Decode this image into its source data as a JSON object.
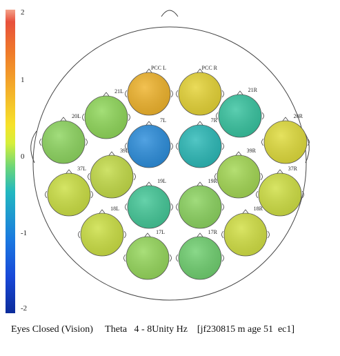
{
  "scale": {
    "ticks": [
      "2",
      "1",
      "0",
      "-1",
      "-2"
    ],
    "colors": [
      "#f4a28a",
      "#e8503c",
      "#ef7a2a",
      "#f3a52a",
      "#f6e22a",
      "#d6ef3a",
      "#6ad57a",
      "#22b8c0",
      "#1a78e0",
      "#1848d8",
      "#0c2c9a"
    ]
  },
  "sites": [
    {
      "label": "PCC L",
      "value": 1.3,
      "color": "#f0b42c"
    },
    {
      "label": "PCC R",
      "value": 0.9,
      "color": "#e6d436"
    },
    {
      "label": "21L",
      "value": 0.2,
      "color": "#90d85a"
    },
    {
      "label": "21R",
      "value": -0.5,
      "color": "#38c4a0"
    },
    {
      "label": "20L",
      "value": 0.1,
      "color": "#8ed660"
    },
    {
      "label": "20R",
      "value": 0.7,
      "color": "#e0dc3c"
    },
    {
      "label": "7L",
      "value": -1.0,
      "color": "#2c8edc"
    },
    {
      "label": "7R",
      "value": -0.6,
      "color": "#2cbab8"
    },
    {
      "label": "39L",
      "value": 0.5,
      "color": "#c4dc48"
    },
    {
      "label": "39R",
      "value": 0.3,
      "color": "#a4d854"
    },
    {
      "label": "37L",
      "value": 0.6,
      "color": "#cce044"
    },
    {
      "label": "37R",
      "value": 0.6,
      "color": "#d0e044"
    },
    {
      "label": "19L",
      "value": -0.3,
      "color": "#44c898"
    },
    {
      "label": "19R",
      "value": 0.2,
      "color": "#8cd460"
    },
    {
      "label": "18L",
      "value": 0.6,
      "color": "#cce044"
    },
    {
      "label": "18R",
      "value": 0.6,
      "color": "#d2e044"
    },
    {
      "label": "17L",
      "value": 0.2,
      "color": "#96d85c"
    },
    {
      "label": "17R",
      "value": 0.0,
      "color": "#70d070"
    }
  ],
  "caption": "Eyes Closed (Vision)     Theta   4 - 8Unity Hz    [jf230815 m age 51  ec1]"
}
